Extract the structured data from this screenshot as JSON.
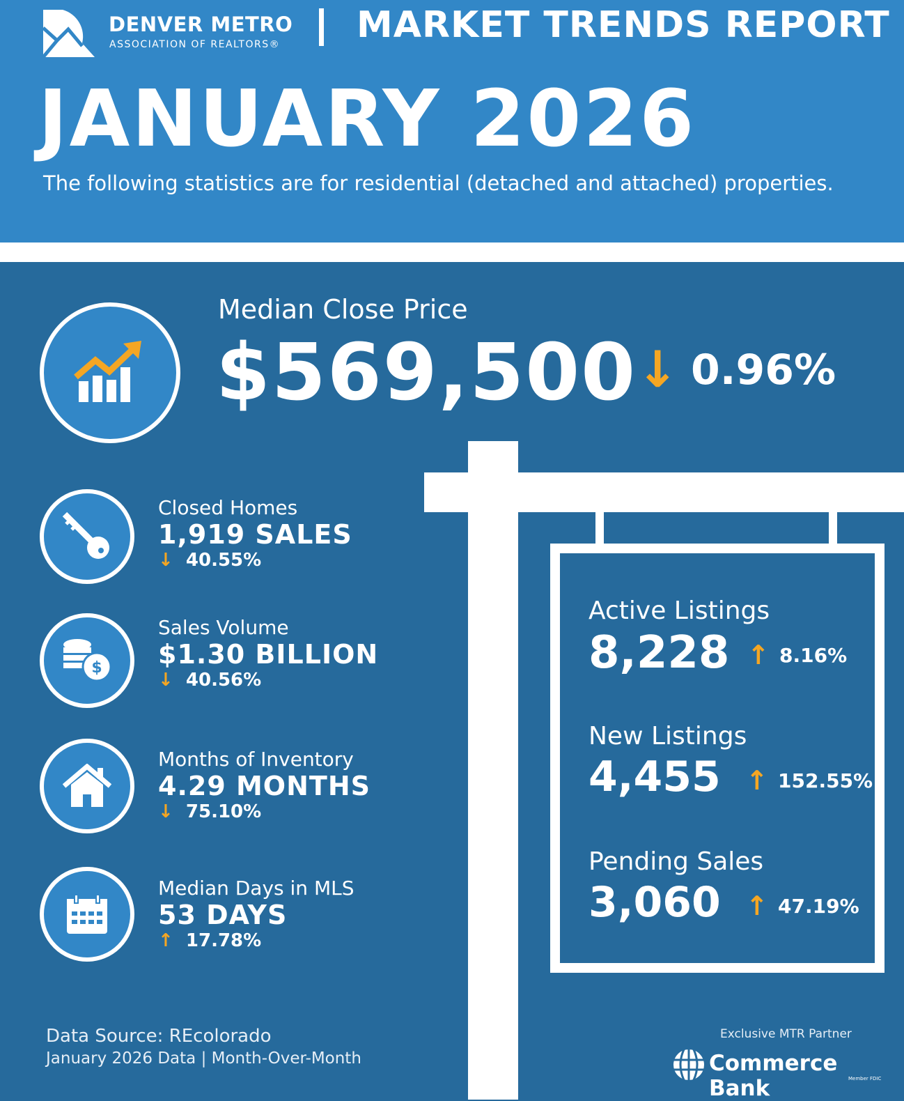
{
  "header": {
    "org_name": "DENVER METRO",
    "org_sub": "ASSOCIATION OF REALTORS®",
    "report_title": "MARKET TRENDS REPORT",
    "month": "JANUARY 2026",
    "subtitle": "The following statistics are for residential (detached and attached) properties."
  },
  "colors": {
    "light_blue": "#3287c7",
    "dark_blue": "#266a9c",
    "accent": "#f5a623"
  },
  "median": {
    "label": "Median Close Price",
    "value": "$569,500",
    "direction": "down",
    "change": "0.96%"
  },
  "left_stats": [
    {
      "icon": "key-icon",
      "label": "Closed Homes",
      "value": "1,919 SALES",
      "direction": "down",
      "change": "40.55%"
    },
    {
      "icon": "coins-icon",
      "label": "Sales Volume",
      "value": "$1.30 BILLION",
      "direction": "down",
      "change": "40.56%"
    },
    {
      "icon": "house-icon",
      "label": "Months of Inventory",
      "value": "4.29 MONTHS",
      "direction": "down",
      "change": "75.10%"
    },
    {
      "icon": "calendar-icon",
      "label": "Median Days in MLS",
      "value": "53 DAYS",
      "direction": "up",
      "change": "17.78%"
    }
  ],
  "sign_stats": [
    {
      "label": "Active Listings",
      "value": "8,228",
      "direction": "up",
      "change": "8.16%"
    },
    {
      "label": "New Listings",
      "value": "4,455",
      "direction": "up",
      "change": "152.55%"
    },
    {
      "label": "Pending Sales",
      "value": "3,060",
      "direction": "up",
      "change": "47.19%"
    }
  ],
  "footer": {
    "source": "Data Source: REcolorado",
    "period": "January 2026 Data | Month-Over-Month",
    "partner_label": "Exclusive MTR Partner",
    "partner_name": "Commerce Bank",
    "partner_fdic": "Member FDIC"
  },
  "arrows": {
    "up": "↑",
    "down": "↓"
  }
}
